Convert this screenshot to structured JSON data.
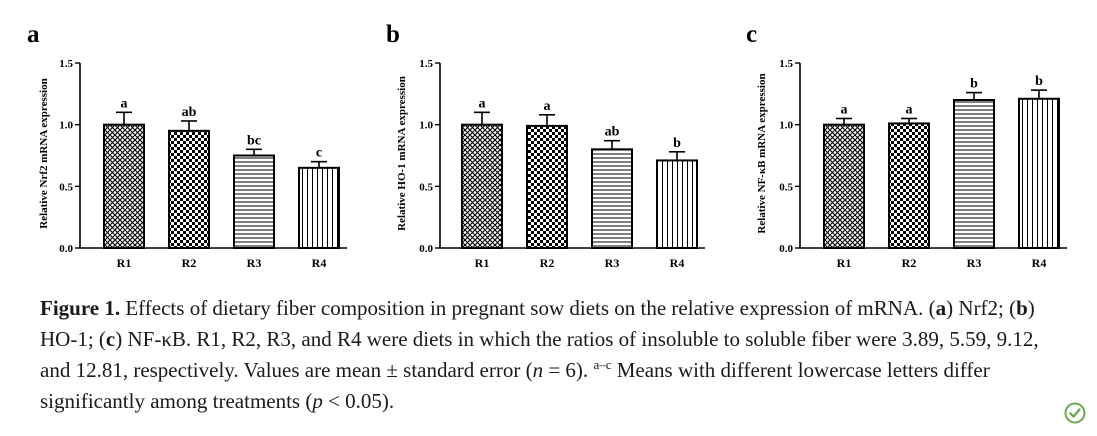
{
  "chart_data": [
    {
      "type": "bar",
      "panel_letter": "a",
      "ylabel": "Relative Nrf2 mRNA expression",
      "categories": [
        "R1",
        "R2",
        "R3",
        "R4"
      ],
      "values": [
        1.0,
        0.95,
        0.75,
        0.65
      ],
      "errors": [
        0.1,
        0.08,
        0.05,
        0.05
      ],
      "letters": [
        "a",
        "ab",
        "bc",
        "c"
      ],
      "patterns": [
        "crosshatch",
        "checker",
        "horizontal",
        "vertical"
      ],
      "ylim": [
        0,
        1.5
      ],
      "yticks": [
        "0.0",
        "0.5",
        "1.0",
        "1.5"
      ]
    },
    {
      "type": "bar",
      "panel_letter": "b",
      "ylabel": "Relative HO-1 mRNA expression",
      "categories": [
        "R1",
        "R2",
        "R3",
        "R4"
      ],
      "values": [
        1.0,
        0.99,
        0.8,
        0.71
      ],
      "errors": [
        0.1,
        0.09,
        0.07,
        0.07
      ],
      "letters": [
        "a",
        "a",
        "ab",
        "b"
      ],
      "patterns": [
        "crosshatch",
        "checker",
        "horizontal",
        "vertical"
      ],
      "ylim": [
        0,
        1.5
      ],
      "yticks": [
        "0.0",
        "0.5",
        "1.0",
        "1.5"
      ]
    },
    {
      "type": "bar",
      "panel_letter": "c",
      "ylabel": "Relative NF-κB mRNA expression",
      "categories": [
        "R1",
        "R2",
        "R3",
        "R4"
      ],
      "values": [
        1.0,
        1.01,
        1.2,
        1.21
      ],
      "errors": [
        0.05,
        0.04,
        0.06,
        0.07
      ],
      "letters": [
        "a",
        "a",
        "b",
        "b"
      ],
      "patterns": [
        "crosshatch",
        "checker",
        "horizontal",
        "vertical"
      ],
      "ylim": [
        0,
        1.5
      ],
      "yticks": [
        "0.0",
        "0.5",
        "1.0",
        "1.5"
      ]
    }
  ],
  "caption": {
    "label": "Figure 1.",
    "t1": " Effects of dietary fiber composition in pregnant sow diets on the relative expression of mRNA. (",
    "a": "a",
    "t2": ") Nrf2; (",
    "b": "b",
    "t3": ") HO-1; (",
    "c": "c",
    "t4": ") NF-κB. R1, R2, R3, and R4 were diets in which the ratios of insoluble to soluble fiber were 3.89, 5.59, 9.12, and 12.81, respectively. Values are mean ± standard error (",
    "n": "n",
    "t5": " = 6). ",
    "sup": "a–c",
    "t6": " Means with different lowercase letters differ significantly among treatments (",
    "p": "p",
    "t7": " < 0.05)."
  }
}
